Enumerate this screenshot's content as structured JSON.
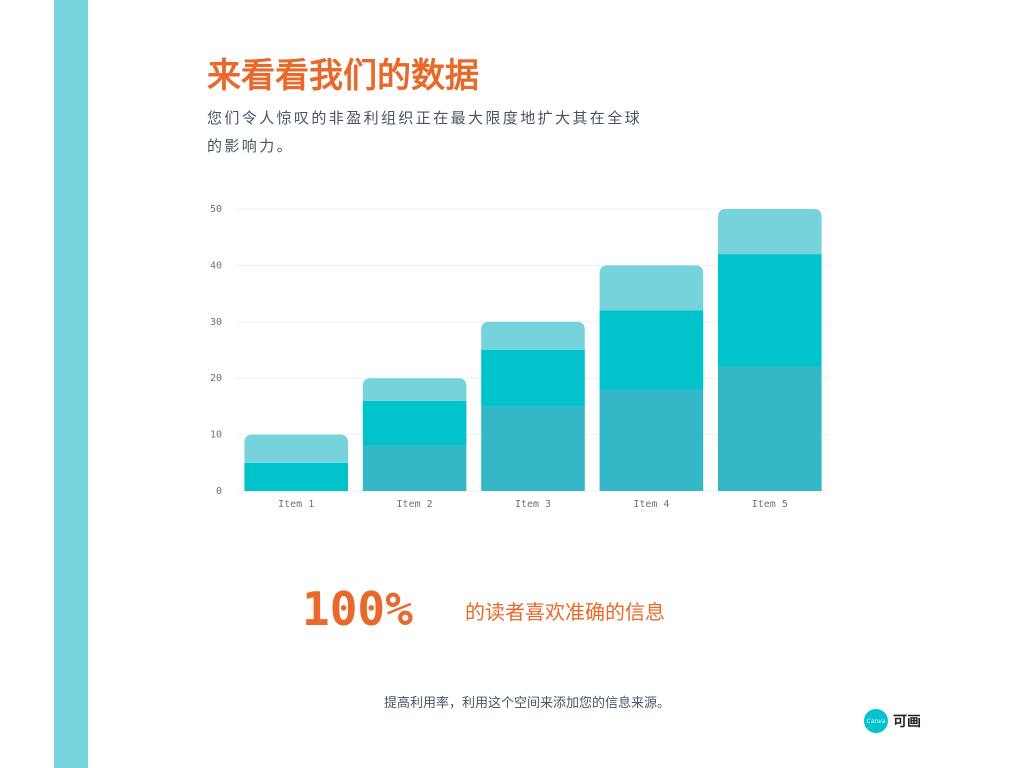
{
  "chart_data": {
    "type": "stacked-bar",
    "title": "来看看我们的数据",
    "subtitle": "您们令人惊叹的非盈利组织正在最大限度地扩大其在全球的影响力。",
    "categories": [
      "Item 1",
      "Item 2",
      "Item 3",
      "Item 4",
      "Item 5"
    ],
    "series": [
      {
        "color": "#34b7c6",
        "values": [
          0,
          8,
          15,
          18,
          22
        ]
      },
      {
        "color": "#00c3cc",
        "values": [
          5,
          8,
          10,
          14,
          20
        ]
      },
      {
        "color": "#76d3dc",
        "values": [
          5,
          4,
          5,
          8,
          8
        ]
      }
    ],
    "ylim": [
      0,
      50
    ],
    "yticks": [
      0,
      10,
      20,
      30,
      40,
      50
    ],
    "grid": true
  },
  "highlight": {
    "figure": "100%",
    "text": "的读者喜欢准确的信息"
  },
  "footnote": "提高利用率，利用这个空间来添加您的信息来源。",
  "logo": {
    "badge": "Canva",
    "text": "可画"
  }
}
